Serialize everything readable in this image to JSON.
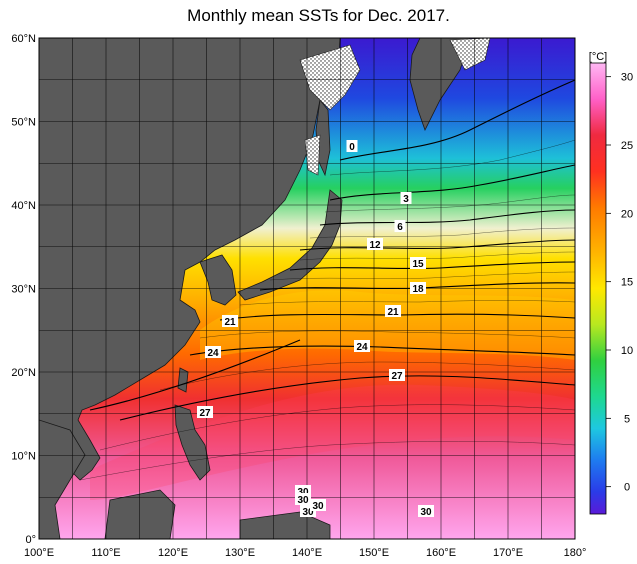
{
  "title": "Monthly mean SSTs for Dec. 2017.",
  "unit_label": "[°C]",
  "lat_labels": [
    "60°N",
    "50°N",
    "40°N",
    "30°N",
    "20°N",
    "10°N",
    "0°"
  ],
  "lon_labels": [
    "100°E",
    "110°E",
    "120°E",
    "130°E",
    "140°E",
    "150°E",
    "160°E",
    "170°E",
    "180°"
  ],
  "colorbar_ticks": [
    "30",
    "25",
    "20",
    "15",
    "10",
    "5",
    "0"
  ],
  "contour_labels": [
    "0",
    "3",
    "6",
    "12",
    "15",
    "18",
    "21",
    "21",
    "24",
    "24",
    "27",
    "27",
    "30",
    "30",
    "30",
    "30",
    "30"
  ],
  "colors": {
    "land": "#5a5a5a",
    "coast": "#1a1a1a",
    "sea_ice": "#ffffff",
    "scale": [
      "#5a1ad8",
      "#2a3ce8",
      "#1e7cf0",
      "#1ec8e0",
      "#1ed890",
      "#30d040",
      "#b8e820",
      "#ffe800",
      "#ffb400",
      "#ff7a00",
      "#ff3020",
      "#f02a40",
      "#ff60c8",
      "#ffb0f0"
    ]
  }
}
